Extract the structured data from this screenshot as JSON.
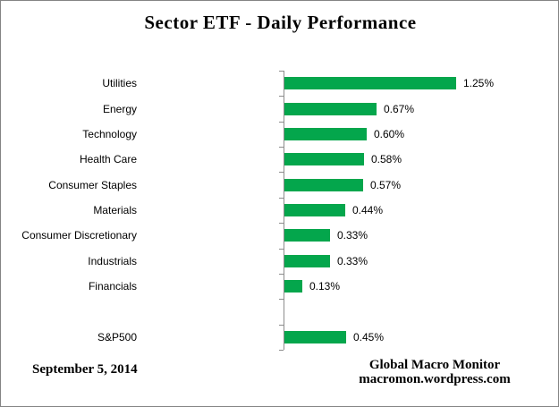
{
  "title": "Sector ETF - Daily Performance",
  "footer": {
    "date": "September 5, 2014",
    "credit_line1": "Global Macro Monitor",
    "credit_line2": "macromon.wordpress.com"
  },
  "colors": {
    "bar": "#04A64C",
    "axis": "#8C8C8C",
    "border": "#848484",
    "text": "#000000"
  },
  "chart_data": {
    "type": "bar",
    "orientation": "horizontal",
    "title": "Sector ETF - Daily Performance",
    "value_unit": "%",
    "grid": false,
    "legend": false,
    "value_axis_labels": "hidden",
    "categories": [
      "Utilities",
      "Energy",
      "Technology",
      "Health Care",
      "Consumer Staples",
      "Materials",
      "Consumer Discretionary",
      "Industrials",
      "Financials",
      "",
      "S&P500"
    ],
    "values": [
      1.25,
      0.67,
      0.6,
      0.58,
      0.57,
      0.44,
      0.33,
      0.33,
      0.13,
      null,
      0.45
    ],
    "data_labels": [
      "1.25%",
      "0.67%",
      "0.60%",
      "0.58%",
      "0.57%",
      "0.44%",
      "0.33%",
      "0.33%",
      "0.13%",
      "",
      "0.45%"
    ],
    "bar_color": "#04A64C"
  }
}
